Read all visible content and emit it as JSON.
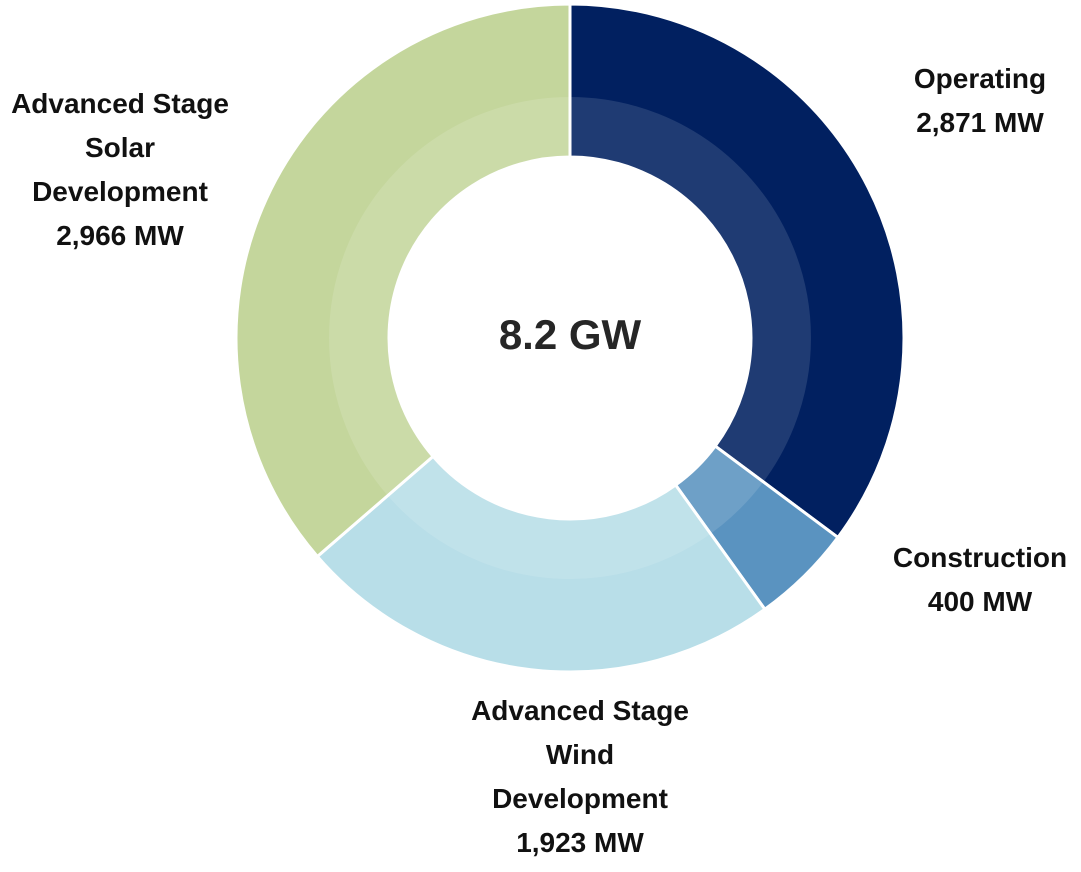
{
  "chart_data": {
    "type": "donut",
    "center_label": "8.2 GW",
    "categories": [
      "Operating",
      "Construction",
      "Advanced Stage Wind Development",
      "Advanced Stage Solar Development"
    ],
    "values": [
      2871,
      400,
      1923,
      2966
    ],
    "value_labels": [
      "2,871 MW",
      "400 MW",
      "1,923 MW",
      "2,966 MW"
    ],
    "colors": [
      "#012060",
      "#5a93c0",
      "#b8dee8",
      "#c4d69c"
    ]
  }
}
